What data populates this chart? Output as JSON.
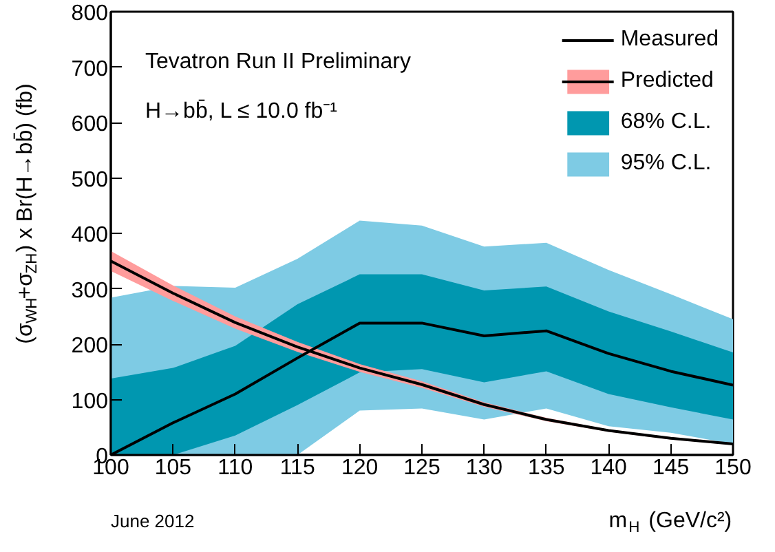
{
  "chart_data": {
    "type": "line",
    "xlabel": "m$_{H}$ (GeV/c²)",
    "ylabel": "(σ$_{WH}$+σ$_{ZH}$) x Br(H→bb̄) (fb)",
    "x": [
      100,
      105,
      110,
      115,
      120,
      125,
      130,
      135,
      140,
      145,
      150
    ],
    "series": [
      {
        "name": "95% C.L.",
        "type": "area",
        "color": "#7ecbe4",
        "values": [
          null,
          null,
          null,
          null,
          null,
          null,
          null,
          null,
          null,
          null,
          null
        ],
        "lower": [
          0,
          0,
          0,
          0,
          80,
          84,
          64,
          84,
          52,
          40,
          20
        ],
        "upper": [
          284,
          305,
          302,
          354,
          423,
          414,
          376,
          383,
          334,
          290,
          245
        ]
      },
      {
        "name": "68% C.L.",
        "type": "area",
        "color": "#0097b0",
        "values": [
          null,
          null,
          null,
          null,
          null,
          null,
          null,
          null,
          null,
          null,
          null
        ],
        "lower": [
          0,
          0,
          35,
          90,
          149,
          155,
          131,
          151,
          110,
          86,
          64
        ],
        "upper": [
          138,
          157,
          197,
          272,
          326,
          326,
          297,
          304,
          259,
          223,
          185
        ]
      },
      {
        "type": "area",
        "color": "#ff9c9c",
        "values": [
          null,
          null,
          null,
          null,
          null,
          null,
          null,
          null,
          null,
          null,
          null
        ],
        "lower": [
          332,
          278,
          228,
          186,
          150,
          121,
          87,
          61,
          42,
          28,
          18
        ],
        "upper": [
          368,
          306,
          250,
          204,
          164,
          133,
          95,
          67,
          46,
          32,
          22
        ]
      },
      {
        "name": "Predicted",
        "color": "#000000",
        "values": [
          350,
          292,
          239,
          195,
          157,
          127,
          91,
          64,
          44,
          30,
          20
        ]
      },
      {
        "name": "Measured",
        "color": "#000000",
        "values": [
          0,
          58,
          110,
          175,
          238,
          238,
          215,
          224,
          183,
          151,
          126
        ]
      }
    ],
    "xlim": [
      100,
      150
    ],
    "ylim": [
      0,
      800
    ],
    "xticks": [
      100,
      105,
      110,
      115,
      120,
      125,
      130,
      135,
      140,
      145,
      150
    ],
    "yticks": [
      0,
      100,
      200,
      300,
      400,
      500,
      600,
      700,
      800
    ],
    "legend": "top right",
    "grid": false,
    "annotations": [
      "Tevatron Run II Preliminary",
      "H→bb̄, L ≤ 10.0 fb⁻¹",
      "June 2012"
    ]
  }
}
